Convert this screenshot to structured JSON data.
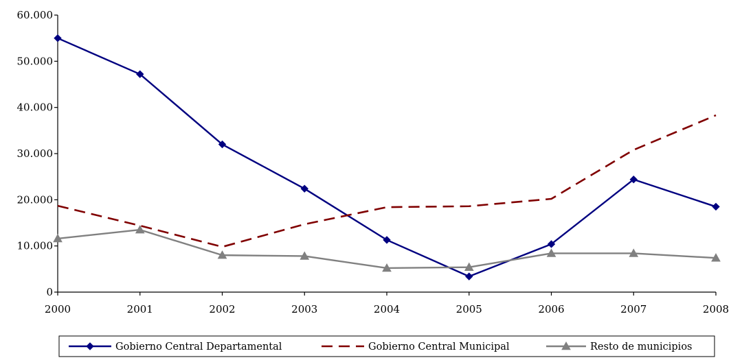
{
  "chart_data": {
    "type": "line",
    "title": "",
    "xlabel": "",
    "ylabel": "",
    "x": [
      "2000",
      "2001",
      "2002",
      "2003",
      "2004",
      "2005",
      "2006",
      "2007",
      "2008"
    ],
    "ylim": [
      0,
      60000
    ],
    "yticks": [
      0,
      10000,
      20000,
      30000,
      40000,
      50000,
      60000
    ],
    "ytick_labels": [
      "0",
      "10.000",
      "20.000",
      "30.000",
      "40.000",
      "50.000",
      "60.000"
    ],
    "grid": false,
    "legend": "bottom",
    "series": [
      {
        "name": "Gobierno Central Departamental",
        "values": [
          55000,
          47200,
          32000,
          22400,
          11300,
          3400,
          10400,
          24400,
          18500
        ],
        "color": "#000080",
        "line": "solid",
        "marker": "diamond"
      },
      {
        "name": "Gobierno Central Municipal",
        "values": [
          18700,
          14400,
          9800,
          14700,
          18400,
          18600,
          20200,
          30800,
          38300
        ],
        "color": "#800000",
        "line": "dashed",
        "marker": "none"
      },
      {
        "name": "Resto de municipios",
        "values": [
          11600,
          13500,
          8000,
          7800,
          5200,
          5400,
          8400,
          8400,
          7400
        ],
        "color": "#808080",
        "line": "solid",
        "marker": "triangle"
      }
    ]
  }
}
